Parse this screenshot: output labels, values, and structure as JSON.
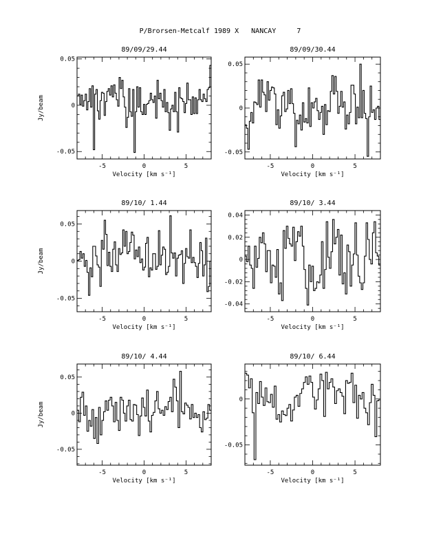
{
  "page_title": "P/Brorsen-Metcalf 1989 X   NANCAY     7",
  "chart_data": [
    {
      "type": "line",
      "title": "89/09/29.44",
      "xlabel": "Velocity [km s⁻¹]",
      "ylabel": "Jy/beam",
      "xlim": [
        -8,
        8
      ],
      "ylim": [
        -0.058,
        0.052
      ],
      "xticks": [
        -5,
        0,
        5
      ],
      "yticks": [
        -0.05,
        0,
        0.05
      ],
      "ytick_labels": [
        "-0.05",
        "0",
        "0.05"
      ],
      "grid": false,
      "values": [
        0.01,
        0.012,
        0.001,
        0.011,
        -0.001,
        0.005,
        0.012,
        -0.005,
        0.004,
        0.018,
        -0.002,
        0.021,
        -0.048,
        0.012,
        0.017,
        -0.006,
        -0.015,
        0.005,
        0.014,
        0.013,
        -0.011,
        0.004,
        0.015,
        0.018,
        0.011,
        0.021,
        0.009,
        0.022,
        0.013,
        0.006,
        -0.001,
        0.03,
        0.018,
        0.027,
        0.009,
        -0.002,
        -0.024,
        -0.013,
        0.018,
        -0.007,
        -0.012,
        0.017,
        -0.051,
        -0.007,
        0.02,
        -0.002,
        0.019,
        -0.007,
        -0.01,
        0.001,
        -0.01,
        0.001,
        0.002,
        0.005,
        0.013,
        0.006,
        0.003,
        0.01,
        -0.014,
        0.027,
        0.007,
        0.013,
        0.005,
        -0.002,
        0.017,
        -0.007,
        0.003,
        -0.008,
        -0.027,
        -0.004,
        0.0,
        -0.007,
        0.014,
        -0.007,
        -0.029,
        0.019,
        0.008,
        0.007,
        0.004,
        -0.008,
        0.002,
        0.024,
        0.006,
        0.006,
        -0.01,
        0.009,
        -0.009,
        0.008,
        -0.009,
        0.006,
        0.017,
        0.006,
        0.004,
        0.012,
        0.007,
        0.004,
        0.017,
        0.019,
        0.043
      ]
    },
    {
      "type": "line",
      "title": "89/09/30.44",
      "xlabel": "Velocity [km s⁻¹]",
      "ylabel": "",
      "xlim": [
        -8,
        8
      ],
      "ylim": [
        -0.058,
        0.058
      ],
      "xticks": [
        -5,
        0,
        5
      ],
      "yticks": [
        -0.05,
        0,
        0.05
      ],
      "ytick_labels": [
        "-0.05",
        "0",
        "0.05"
      ],
      "grid": false,
      "values": [
        -0.019,
        -0.023,
        -0.047,
        -0.015,
        -0.005,
        -0.017,
        0.007,
        0.006,
        0.004,
        0.032,
        0.001,
        0.032,
        0.018,
        0.015,
        -0.004,
        0.03,
        0.009,
        0.02,
        0.024,
        0.023,
        0.016,
        -0.019,
        -0.002,
        -0.023,
        -0.009,
        0.014,
        0.018,
        -0.004,
        -0.001,
        0.02,
        0.005,
        0.022,
        0.005,
        -0.006,
        -0.044,
        -0.014,
        -0.018,
        -0.008,
        -0.025,
        0.006,
        -0.016,
        -0.012,
        -0.017,
        0.023,
        -0.021,
        0.006,
        0.0,
        0.007,
        0.011,
        -0.003,
        -0.013,
        -0.005,
        0.002,
        -0.03,
        0.004,
        -0.019,
        -0.003,
        -0.004,
        0.019,
        0.037,
        0.016,
        0.036,
        0.019,
        -0.006,
        0.002,
        0.019,
        0.001,
        0.007,
        -0.024,
        -0.008,
        -0.018,
        -0.005,
        0.026,
        0.026,
        0.016,
        -0.018,
        0.001,
        -0.011,
        0.05,
        -0.011,
        0.02,
        -0.006,
        -0.012,
        -0.055,
        -0.01,
        0.025,
        -0.005,
        -0.002,
        -0.013,
        0.0,
        0.002,
        -0.013
      ]
    },
    {
      "type": "line",
      "title": "89/10/ 1.44",
      "xlabel": "Velocity [km s⁻¹]",
      "ylabel": "Jy/beam",
      "xlim": [
        -8,
        8
      ],
      "ylim": [
        -0.068,
        0.068
      ],
      "xticks": [
        -5,
        0,
        5
      ],
      "yticks": [
        -0.05,
        0,
        0.05
      ],
      "ytick_labels": [
        "-0.05",
        "0",
        "0.05"
      ],
      "grid": false,
      "values": [
        0.001,
        0.002,
        0.013,
        0.004,
        0.01,
        -0.007,
        0.001,
        -0.015,
        -0.046,
        -0.009,
        -0.021,
        0.02,
        0.02,
        0.007,
        -0.005,
        -0.008,
        -0.034,
        0.028,
        0.016,
        0.055,
        0.036,
        -0.006,
        0.012,
        -0.007,
        -0.014,
        0.016,
        0.026,
        -0.005,
        -0.014,
        0.017,
        0.009,
        0.011,
        0.042,
        0.02,
        0.04,
        0.01,
        0.013,
        0.025,
        0.039,
        0.035,
        0.003,
        0.015,
        0.006,
        0.019,
        -0.002,
        0.003,
        -0.012,
        -0.008,
        0.024,
        0.032,
        -0.021,
        -0.009,
        -0.012,
        0.01,
        0.01,
        -0.011,
        -0.007,
        0.041,
        -0.005,
        0.008,
        0.019,
        0.016,
        -0.018,
        -0.015,
        -0.007,
        0.061,
        0.011,
        0.004,
        0.011,
        -0.02,
        0.004,
        0.008,
        0.009,
        0.014,
        -0.03,
        -0.003,
        0.017,
        0.006,
        0.004,
        0.042,
        -0.002,
        0.005,
        -0.002,
        -0.007,
        -0.022,
        -0.003,
        0.025,
        0.014,
        -0.02,
        -0.005,
        0.031,
        -0.041,
        -0.034,
        0.0
      ]
    },
    {
      "type": "line",
      "title": "89/10/ 3.44",
      "xlabel": "Velocity [km s⁻¹]",
      "ylabel": "",
      "xlim": [
        -8,
        8
      ],
      "ylim": [
        -0.047,
        0.044
      ],
      "xticks": [
        -5,
        0,
        5
      ],
      "yticks": [
        -0.04,
        -0.02,
        0,
        0.02,
        0.04
      ],
      "ytick_labels": [
        "-0.04",
        "-0.02",
        "0",
        "0.02",
        "0.04"
      ],
      "grid": false,
      "values": [
        0.003,
        -0.002,
        0.012,
        -0.005,
        -0.008,
        -0.026,
        0.012,
        -0.007,
        0.001,
        0.02,
        0.015,
        0.024,
        0.014,
        -0.011,
        0.008,
        0.008,
        -0.021,
        -0.005,
        -0.006,
        -0.016,
        0.009,
        -0.031,
        -0.021,
        -0.037,
        0.026,
        0.01,
        0.03,
        0.019,
        0.014,
        0.012,
        0.029,
        -0.001,
        0.016,
        0.025,
        0.021,
        0.03,
        0.012,
        -0.009,
        -0.026,
        -0.041,
        -0.005,
        -0.02,
        -0.006,
        -0.028,
        -0.026,
        -0.02,
        -0.021,
        -0.014,
        0.016,
        -0.026,
        -0.009,
        0.034,
        0.002,
        -0.008,
        0.007,
        0.036,
        0.014,
        0.02,
        0.027,
        -0.014,
        0.022,
        -0.022,
        -0.012,
        -0.031,
        0.013,
        0.007,
        -0.024,
        -0.005,
        0.005,
        0.033,
        0.004,
        -0.015,
        -0.021,
        -0.027,
        -0.021,
        0.003,
        0.033,
        0.018,
        0.0,
        -0.004,
        0.024,
        0.034,
        0.006,
        0.003,
        -0.005
      ]
    },
    {
      "type": "line",
      "title": "89/10/ 4.44",
      "xlabel": "Velocity [km s⁻¹]",
      "ylabel": "Jy/beam",
      "xlim": [
        -8,
        8
      ],
      "ylim": [
        -0.072,
        0.068
      ],
      "xticks": [
        -5,
        0,
        5
      ],
      "yticks": [
        -0.05,
        0,
        0.05
      ],
      "ytick_labels": [
        "-0.05",
        "0",
        "0.05"
      ],
      "grid": false,
      "values": [
        0.004,
        -0.012,
        0.022,
        0.029,
        -0.003,
        0.01,
        -0.025,
        -0.01,
        -0.018,
        0.005,
        -0.035,
        -0.006,
        -0.042,
        0.008,
        -0.03,
        -0.01,
        0.002,
        0.017,
        0.004,
        0.018,
        0.022,
        0.01,
        -0.012,
        0.015,
        -0.01,
        -0.024,
        0.022,
        0.018,
        0.0,
        -0.011,
        0.01,
        0.018,
        -0.009,
        -0.011,
        0.012,
        0.011,
        -0.002,
        -0.031,
        -0.004,
        0.021,
        0.008,
        -0.004,
        0.032,
        -0.011,
        -0.026,
        -0.003,
        0.001,
        0.017,
        0.03,
        0.006,
        0.0,
        0.004,
        -0.003,
        0.009,
        0.005,
        0.016,
        0.022,
        0.002,
        0.047,
        0.036,
        0.017,
        -0.02,
        0.058,
        0.002,
        -0.001,
        0.014,
        0.011,
        0.008,
        -0.008,
        0.012,
        -0.006,
        0.0,
        -0.006,
        -0.002,
        -0.02,
        -0.026,
        0.002,
        -0.009,
        -0.007,
        0.012,
        0.004
      ]
    },
    {
      "type": "line",
      "title": "89/10/ 6.44",
      "xlabel": "Velocity [km s⁻¹]",
      "ylabel": "",
      "xlim": [
        -8,
        8
      ],
      "ylim": [
        -0.072,
        0.038
      ],
      "xticks": [
        -5,
        0,
        5
      ],
      "yticks": [
        -0.05,
        0
      ],
      "ytick_labels": [
        "-0.05",
        "0"
      ],
      "grid": false,
      "values": [
        0.028,
        0.026,
        0.012,
        0.022,
        -0.015,
        -0.066,
        0.007,
        -0.005,
        0.019,
        0.002,
        -0.007,
        0.012,
        -0.003,
        -0.004,
        0.005,
        -0.009,
        0.014,
        -0.022,
        -0.017,
        -0.025,
        -0.013,
        -0.017,
        -0.018,
        -0.01,
        -0.006,
        -0.024,
        -0.012,
        0.002,
        0.004,
        -0.008,
        0.006,
        0.011,
        0.018,
        0.024,
        0.016,
        0.025,
        0.018,
        0.002,
        -0.011,
        -0.001,
        0.011,
        0.027,
        0.02,
        -0.019,
        0.029,
        0.011,
        0.018,
        0.022,
        0.013,
        -0.005,
        0.009,
        0.011,
        0.007,
        0.003,
        -0.016,
        0.02,
        0.017,
        0.018,
        0.028,
        -0.004,
        0.015,
        -0.021,
        0.004,
        0.0,
        0.007,
        -0.01,
        -0.015,
        -0.028,
        -0.004,
        0.016,
        0.004,
        -0.041,
        -0.002,
        -0.001
      ]
    }
  ]
}
